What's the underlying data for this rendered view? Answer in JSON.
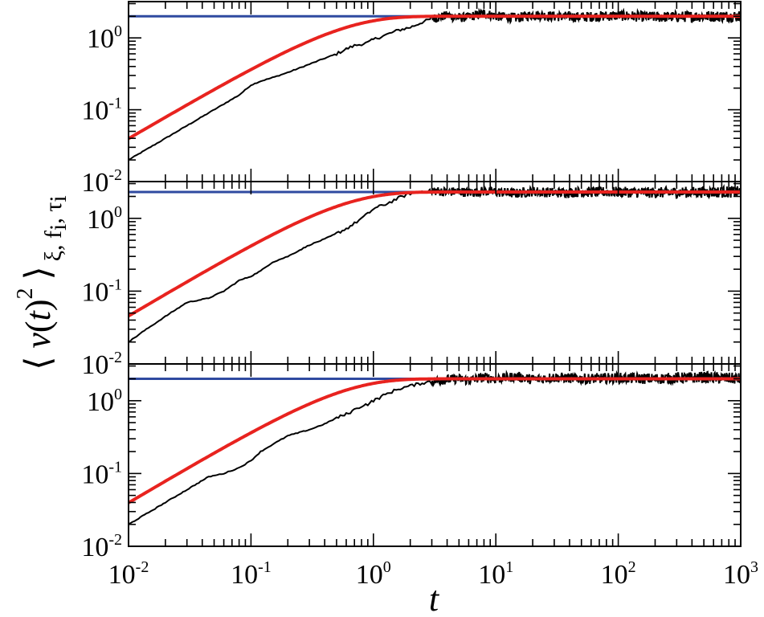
{
  "chart_data": {
    "type": "line",
    "xlabel": "t",
    "ylabel": {
      "open": "⟨",
      "v": "v",
      "paren_open": "(",
      "t": "t",
      "paren_close": ")",
      "power": "2",
      "close": "⟩",
      "subscript": "ξ, f",
      "sub_i1": "i",
      "sub_tau": ", τ",
      "sub_i2": "i"
    },
    "xscale": "log",
    "yscale": "log",
    "xlim": [
      0.01,
      1000
    ],
    "ylim": [
      0.01,
      3.2
    ],
    "x_ticks": [
      {
        "base": "10",
        "exp": "-2",
        "value": 0.01
      },
      {
        "base": "10",
        "exp": "-1",
        "value": 0.1
      },
      {
        "base": "10",
        "exp": "0",
        "value": 1
      },
      {
        "base": "10",
        "exp": "1",
        "value": 10
      },
      {
        "base": "10",
        "exp": "2",
        "value": 100
      },
      {
        "base": "10",
        "exp": "3",
        "value": 1000
      }
    ],
    "y_ticks": [
      {
        "base": "10",
        "exp": "-2",
        "value": 0.01
      },
      {
        "base": "10",
        "exp": "-1",
        "value": 0.1
      },
      {
        "base": "10",
        "exp": "0",
        "value": 1
      }
    ],
    "colors": {
      "simulation": "#000000",
      "theory": "#e8231f",
      "equilibrium": "#2f4aa0"
    },
    "panels": [
      {
        "equilibrium": 2.0,
        "theory_tau": 0.5,
        "simulation": [
          [
            0.01,
            0.02
          ],
          [
            0.014,
            0.028
          ],
          [
            0.02,
            0.04
          ],
          [
            0.03,
            0.06
          ],
          [
            0.045,
            0.09
          ],
          [
            0.06,
            0.12
          ],
          [
            0.08,
            0.16
          ],
          [
            0.1,
            0.22
          ],
          [
            0.12,
            0.25
          ],
          [
            0.15,
            0.28
          ],
          [
            0.2,
            0.33
          ],
          [
            0.3,
            0.43
          ],
          [
            0.4,
            0.52
          ],
          [
            0.5,
            0.6
          ],
          [
            0.6,
            0.7
          ],
          [
            0.7,
            0.78
          ],
          [
            0.8,
            0.82
          ],
          [
            0.9,
            0.86
          ],
          [
            1.0,
            0.95
          ],
          [
            1.3,
            1.12
          ],
          [
            1.6,
            1.28
          ],
          [
            2.0,
            1.4
          ],
          [
            2.5,
            1.65
          ],
          [
            3.0,
            1.85
          ],
          [
            4.0,
            2.05
          ],
          [
            5.0,
            1.9
          ],
          [
            6.0,
            1.95
          ],
          [
            8.0,
            2.2
          ],
          [
            10,
            2.0
          ],
          [
            15,
            1.9
          ],
          [
            20,
            2.1
          ],
          [
            30,
            2.0
          ],
          [
            50,
            1.95
          ],
          [
            100,
            2.05
          ],
          [
            200,
            1.95
          ],
          [
            500,
            2.0
          ],
          [
            1000,
            2.0
          ]
        ]
      },
      {
        "equilibrium": 2.3,
        "theory_tau": 0.5,
        "simulation": [
          [
            0.01,
            0.02
          ],
          [
            0.014,
            0.03
          ],
          [
            0.02,
            0.045
          ],
          [
            0.03,
            0.07
          ],
          [
            0.045,
            0.08
          ],
          [
            0.06,
            0.1
          ],
          [
            0.08,
            0.14
          ],
          [
            0.1,
            0.16
          ],
          [
            0.12,
            0.19
          ],
          [
            0.15,
            0.25
          ],
          [
            0.2,
            0.3
          ],
          [
            0.3,
            0.43
          ],
          [
            0.4,
            0.52
          ],
          [
            0.5,
            0.62
          ],
          [
            0.6,
            0.72
          ],
          [
            0.7,
            0.85
          ],
          [
            0.8,
            1.0
          ],
          [
            0.9,
            1.15
          ],
          [
            1.0,
            1.35
          ],
          [
            1.3,
            1.6
          ],
          [
            1.6,
            1.9
          ],
          [
            2.0,
            2.2
          ],
          [
            2.5,
            2.35
          ],
          [
            3.0,
            2.4
          ],
          [
            4.0,
            2.3
          ],
          [
            5.0,
            2.35
          ],
          [
            6.0,
            2.25
          ],
          [
            8.0,
            2.35
          ],
          [
            10,
            2.3
          ],
          [
            15,
            2.2
          ],
          [
            20,
            2.35
          ],
          [
            30,
            2.25
          ],
          [
            50,
            2.3
          ],
          [
            100,
            2.3
          ],
          [
            200,
            2.25
          ],
          [
            500,
            2.3
          ],
          [
            1000,
            2.3
          ]
        ]
      },
      {
        "equilibrium": 2.0,
        "theory_tau": 0.5,
        "simulation": [
          [
            0.01,
            0.02
          ],
          [
            0.014,
            0.028
          ],
          [
            0.02,
            0.04
          ],
          [
            0.03,
            0.06
          ],
          [
            0.045,
            0.09
          ],
          [
            0.06,
            0.1
          ],
          [
            0.08,
            0.12
          ],
          [
            0.1,
            0.15
          ],
          [
            0.12,
            0.2
          ],
          [
            0.15,
            0.25
          ],
          [
            0.2,
            0.33
          ],
          [
            0.3,
            0.4
          ],
          [
            0.4,
            0.48
          ],
          [
            0.5,
            0.58
          ],
          [
            0.6,
            0.65
          ],
          [
            0.7,
            0.75
          ],
          [
            0.8,
            0.85
          ],
          [
            0.9,
            0.9
          ],
          [
            1.0,
            1.0
          ],
          [
            1.3,
            1.25
          ],
          [
            1.6,
            1.45
          ],
          [
            2.0,
            1.6
          ],
          [
            2.5,
            1.75
          ],
          [
            3.0,
            1.85
          ],
          [
            4.0,
            1.95
          ],
          [
            5.0,
            2.0
          ],
          [
            6.0,
            1.9
          ],
          [
            8.0,
            2.1
          ],
          [
            10,
            2.0
          ],
          [
            15,
            2.15
          ],
          [
            20,
            1.95
          ],
          [
            30,
            2.1
          ],
          [
            50,
            2.0
          ],
          [
            100,
            2.05
          ],
          [
            200,
            2.0
          ],
          [
            500,
            2.1
          ],
          [
            1000,
            2.0
          ]
        ]
      }
    ]
  }
}
